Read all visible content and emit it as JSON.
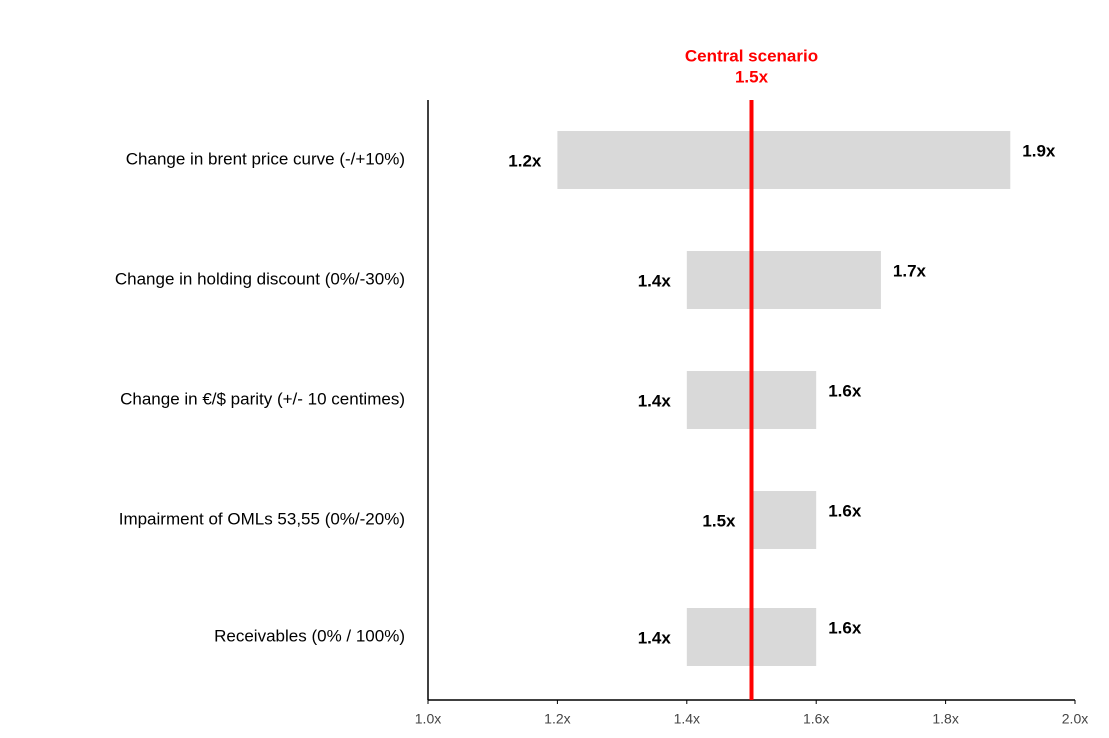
{
  "chart_data": {
    "type": "tornado",
    "categories": [
      "Change in brent price curve (-/+10%)",
      "Change in holding discount (0%/-30%)",
      "Change in €/$ parity (+/- 10 centimes)",
      "Impairment of OMLs 53,55 (0%/-20%)",
      "Receivables (0% / 100%)"
    ],
    "low": [
      1.2,
      1.4,
      1.4,
      1.5,
      1.4
    ],
    "low_labels": [
      "1.2x",
      "1.4x",
      "1.4x",
      "1.5x",
      "1.4x"
    ],
    "high": [
      1.9,
      1.7,
      1.6,
      1.6,
      1.6
    ],
    "high_labels": [
      "1.9x",
      "1.7x",
      "1.6x",
      "1.6x",
      "1.6x"
    ],
    "color": "#d9d9d9",
    "reference": {
      "value": 1.5,
      "label": "Central scenario",
      "value_label": "1.5x",
      "color": "#ff0000"
    },
    "xlim": [
      1.0,
      2.0
    ],
    "xticks": [
      {
        "value": 1.0,
        "label": "1.0x"
      },
      {
        "value": 1.2,
        "label": "1.2x"
      },
      {
        "value": 1.4,
        "label": "1.4x"
      },
      {
        "value": 1.6,
        "label": "1.6x"
      },
      {
        "value": 1.8,
        "label": "1.8x"
      },
      {
        "value": 2.0,
        "label": "2.0x"
      }
    ]
  }
}
